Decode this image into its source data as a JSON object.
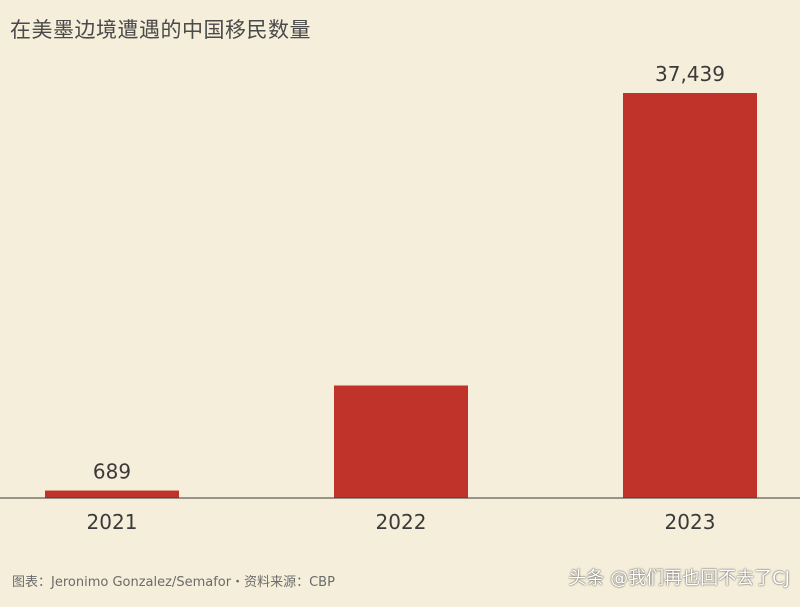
{
  "chart_data": {
    "type": "bar",
    "title": "在美墨边境遭遇的中国移民数量",
    "categories": [
      "2021",
      "2022",
      "2023"
    ],
    "values": [
      689,
      10400,
      37439
    ],
    "data_labels": [
      "689",
      "",
      "37,439"
    ],
    "ylim": [
      0,
      37439
    ],
    "grid": false,
    "legend": "none",
    "bar_color": "#c0332a",
    "background": "#f5eeda"
  },
  "source_note": "图表：Jeronimo Gonzalez/Semafor・资料来源：CBP",
  "watermark": "头条 @我们再也回不去了CJ"
}
